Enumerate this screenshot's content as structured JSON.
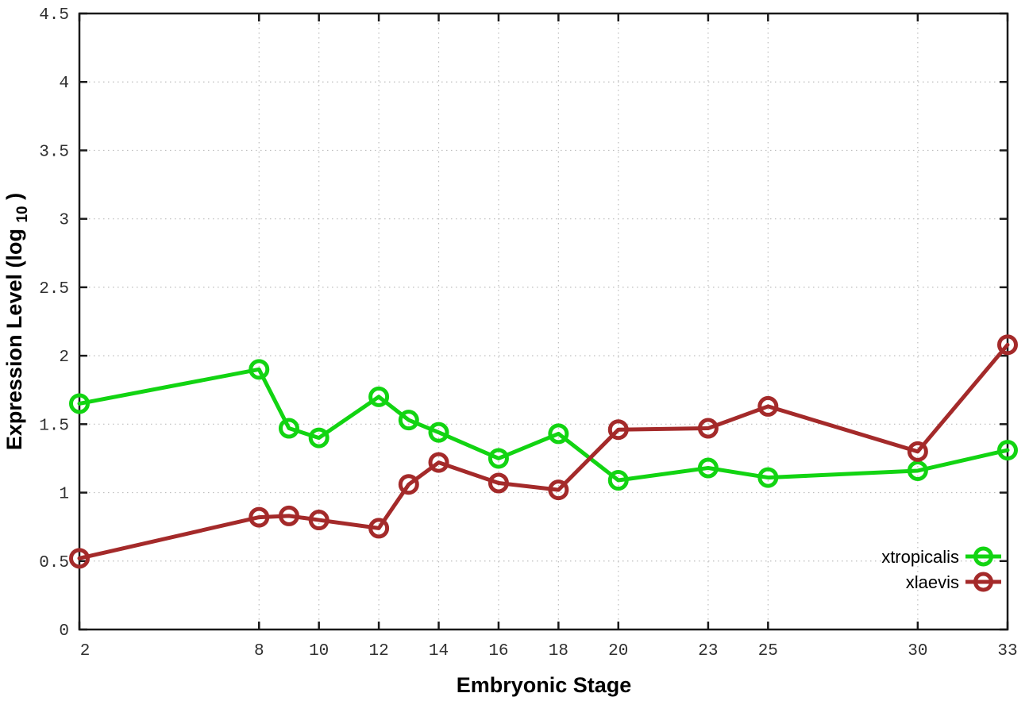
{
  "chart_data": {
    "type": "line",
    "title": "",
    "xlabel": "Embryonic Stage",
    "ylabel": "Expression Level (log10)",
    "ylabel_parts": {
      "prefix": "Expression Level (log",
      "sub": "10",
      "suffix": ")"
    },
    "xlim": [
      2,
      33
    ],
    "ylim": [
      0,
      4.5
    ],
    "grid": true,
    "legend_position": "bottom-right",
    "x_ticks": [
      2,
      8,
      10,
      12,
      14,
      16,
      18,
      20,
      23,
      25,
      30,
      33
    ],
    "x_tick_labels": [
      "2",
      "8",
      "10",
      "12",
      "14",
      "16",
      "18",
      "20",
      "23",
      "25",
      "30",
      "33"
    ],
    "y_ticks": [
      0,
      0.5,
      1,
      1.5,
      2,
      2.5,
      3,
      3.5,
      4,
      4.5
    ],
    "y_tick_labels": [
      "0",
      "0.5",
      "1",
      "1.5",
      "2",
      "2.5",
      "3",
      "3.5",
      "4",
      "4.5"
    ],
    "x": [
      2,
      8,
      9,
      10,
      12,
      13,
      14,
      16,
      18,
      20,
      23,
      25,
      30,
      33
    ],
    "series": [
      {
        "name": "xtropicalis",
        "color": "#12d412",
        "values": [
          1.65,
          1.9,
          1.47,
          1.4,
          1.7,
          1.53,
          1.44,
          1.25,
          1.43,
          1.09,
          1.18,
          1.11,
          1.16,
          1.31
        ]
      },
      {
        "name": "xlaevis",
        "color": "#a42a2a",
        "values": [
          0.52,
          0.82,
          0.83,
          0.8,
          0.74,
          1.06,
          1.22,
          1.07,
          1.02,
          1.46,
          1.47,
          1.63,
          1.3,
          2.08
        ]
      }
    ],
    "style": {
      "grid_color": "#bdbdbd",
      "border_color": "#1a1a1a",
      "tick_label_color": "#303030",
      "background": "#ffffff"
    }
  }
}
